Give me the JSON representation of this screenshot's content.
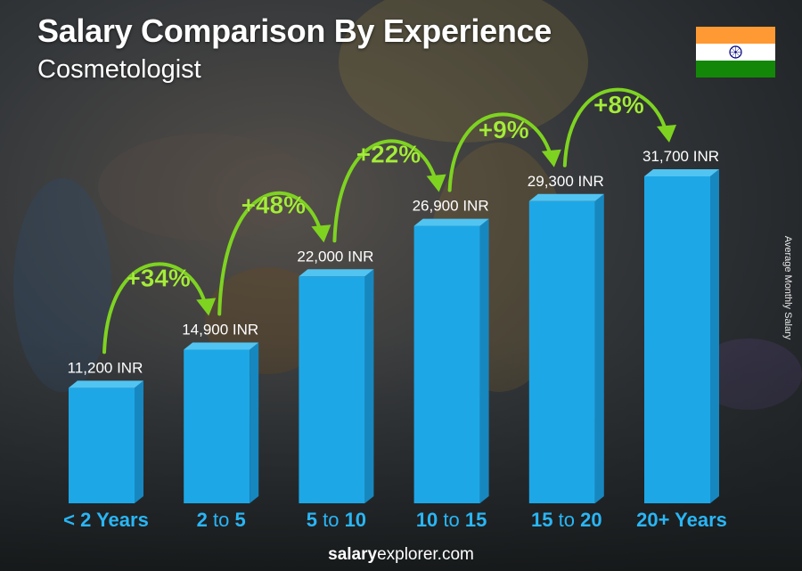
{
  "header": {
    "title": "Salary Comparison By Experience",
    "subtitle": "Cosmetologist"
  },
  "side_label": "Average Monthly Salary",
  "footer": {
    "brand_bold": "salary",
    "brand_rest": "explorer.com"
  },
  "flag": {
    "name": "india-flag-icon",
    "colors": [
      "#ff9933",
      "#ffffff",
      "#138808"
    ],
    "chakra": "#000080"
  },
  "colors": {
    "bar_front": "#1ea7e6",
    "bar_side": "#1787c0",
    "bar_top": "#52c4f2",
    "category_accent": "#29b6f6",
    "arrow": "#7ed321",
    "pct_text": "#a5ec3c"
  },
  "chart_data": {
    "type": "bar",
    "categories": [
      {
        "main": "< 2 Years",
        "parts": [
          "< 2 Years"
        ]
      },
      {
        "main": "2 to 5",
        "parts": [
          "2",
          "to",
          "5"
        ]
      },
      {
        "main": "5 to 10",
        "parts": [
          "5",
          "to",
          "10"
        ]
      },
      {
        "main": "10 to 15",
        "parts": [
          "10",
          "to",
          "15"
        ]
      },
      {
        "main": "15 to 20",
        "parts": [
          "15",
          "to",
          "20"
        ]
      },
      {
        "main": "20+ Years",
        "parts": [
          "20+ Years"
        ]
      }
    ],
    "values": [
      11200,
      14900,
      22000,
      26900,
      29300,
      31700
    ],
    "value_labels": [
      "11,200 INR",
      "14,900 INR",
      "22,000 INR",
      "26,900 INR",
      "29,300 INR",
      "31,700 INR"
    ],
    "changes": [
      "+34%",
      "+48%",
      "+22%",
      "+9%",
      "+8%"
    ],
    "ylabel": "Average Monthly Salary",
    "ylim": [
      0,
      31700
    ],
    "legend": "none",
    "grid": false
  }
}
